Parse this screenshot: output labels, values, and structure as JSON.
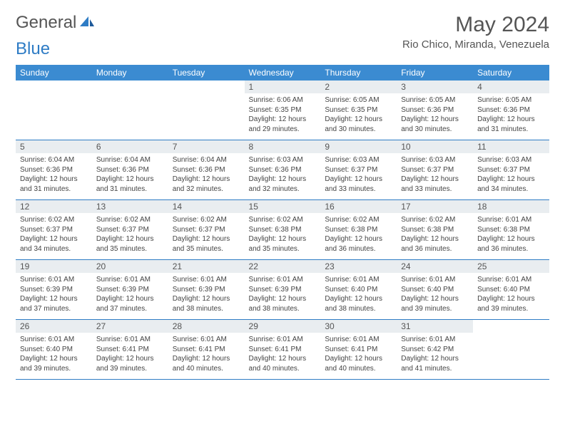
{
  "brand": {
    "name1": "General",
    "name2": "Blue"
  },
  "title": "May 2024",
  "location": "Rio Chico, Miranda, Venezuela",
  "colors": {
    "header_bg": "#3b8bd1",
    "header_text": "#ffffff",
    "divider": "#2e7cc5",
    "daynum_bg": "#e9edf0",
    "text": "#555555",
    "body_text": "#444444"
  },
  "weekdays": [
    "Sunday",
    "Monday",
    "Tuesday",
    "Wednesday",
    "Thursday",
    "Friday",
    "Saturday"
  ],
  "weeks": [
    [
      null,
      null,
      null,
      {
        "n": "1",
        "sunrise": "Sunrise: 6:06 AM",
        "sunset": "Sunset: 6:35 PM",
        "d1": "Daylight: 12 hours",
        "d2": "and 29 minutes."
      },
      {
        "n": "2",
        "sunrise": "Sunrise: 6:05 AM",
        "sunset": "Sunset: 6:35 PM",
        "d1": "Daylight: 12 hours",
        "d2": "and 30 minutes."
      },
      {
        "n": "3",
        "sunrise": "Sunrise: 6:05 AM",
        "sunset": "Sunset: 6:36 PM",
        "d1": "Daylight: 12 hours",
        "d2": "and 30 minutes."
      },
      {
        "n": "4",
        "sunrise": "Sunrise: 6:05 AM",
        "sunset": "Sunset: 6:36 PM",
        "d1": "Daylight: 12 hours",
        "d2": "and 31 minutes."
      }
    ],
    [
      {
        "n": "5",
        "sunrise": "Sunrise: 6:04 AM",
        "sunset": "Sunset: 6:36 PM",
        "d1": "Daylight: 12 hours",
        "d2": "and 31 minutes."
      },
      {
        "n": "6",
        "sunrise": "Sunrise: 6:04 AM",
        "sunset": "Sunset: 6:36 PM",
        "d1": "Daylight: 12 hours",
        "d2": "and 31 minutes."
      },
      {
        "n": "7",
        "sunrise": "Sunrise: 6:04 AM",
        "sunset": "Sunset: 6:36 PM",
        "d1": "Daylight: 12 hours",
        "d2": "and 32 minutes."
      },
      {
        "n": "8",
        "sunrise": "Sunrise: 6:03 AM",
        "sunset": "Sunset: 6:36 PM",
        "d1": "Daylight: 12 hours",
        "d2": "and 32 minutes."
      },
      {
        "n": "9",
        "sunrise": "Sunrise: 6:03 AM",
        "sunset": "Sunset: 6:37 PM",
        "d1": "Daylight: 12 hours",
        "d2": "and 33 minutes."
      },
      {
        "n": "10",
        "sunrise": "Sunrise: 6:03 AM",
        "sunset": "Sunset: 6:37 PM",
        "d1": "Daylight: 12 hours",
        "d2": "and 33 minutes."
      },
      {
        "n": "11",
        "sunrise": "Sunrise: 6:03 AM",
        "sunset": "Sunset: 6:37 PM",
        "d1": "Daylight: 12 hours",
        "d2": "and 34 minutes."
      }
    ],
    [
      {
        "n": "12",
        "sunrise": "Sunrise: 6:02 AM",
        "sunset": "Sunset: 6:37 PM",
        "d1": "Daylight: 12 hours",
        "d2": "and 34 minutes."
      },
      {
        "n": "13",
        "sunrise": "Sunrise: 6:02 AM",
        "sunset": "Sunset: 6:37 PM",
        "d1": "Daylight: 12 hours",
        "d2": "and 35 minutes."
      },
      {
        "n": "14",
        "sunrise": "Sunrise: 6:02 AM",
        "sunset": "Sunset: 6:37 PM",
        "d1": "Daylight: 12 hours",
        "d2": "and 35 minutes."
      },
      {
        "n": "15",
        "sunrise": "Sunrise: 6:02 AM",
        "sunset": "Sunset: 6:38 PM",
        "d1": "Daylight: 12 hours",
        "d2": "and 35 minutes."
      },
      {
        "n": "16",
        "sunrise": "Sunrise: 6:02 AM",
        "sunset": "Sunset: 6:38 PM",
        "d1": "Daylight: 12 hours",
        "d2": "and 36 minutes."
      },
      {
        "n": "17",
        "sunrise": "Sunrise: 6:02 AM",
        "sunset": "Sunset: 6:38 PM",
        "d1": "Daylight: 12 hours",
        "d2": "and 36 minutes."
      },
      {
        "n": "18",
        "sunrise": "Sunrise: 6:01 AM",
        "sunset": "Sunset: 6:38 PM",
        "d1": "Daylight: 12 hours",
        "d2": "and 36 minutes."
      }
    ],
    [
      {
        "n": "19",
        "sunrise": "Sunrise: 6:01 AM",
        "sunset": "Sunset: 6:39 PM",
        "d1": "Daylight: 12 hours",
        "d2": "and 37 minutes."
      },
      {
        "n": "20",
        "sunrise": "Sunrise: 6:01 AM",
        "sunset": "Sunset: 6:39 PM",
        "d1": "Daylight: 12 hours",
        "d2": "and 37 minutes."
      },
      {
        "n": "21",
        "sunrise": "Sunrise: 6:01 AM",
        "sunset": "Sunset: 6:39 PM",
        "d1": "Daylight: 12 hours",
        "d2": "and 38 minutes."
      },
      {
        "n": "22",
        "sunrise": "Sunrise: 6:01 AM",
        "sunset": "Sunset: 6:39 PM",
        "d1": "Daylight: 12 hours",
        "d2": "and 38 minutes."
      },
      {
        "n": "23",
        "sunrise": "Sunrise: 6:01 AM",
        "sunset": "Sunset: 6:40 PM",
        "d1": "Daylight: 12 hours",
        "d2": "and 38 minutes."
      },
      {
        "n": "24",
        "sunrise": "Sunrise: 6:01 AM",
        "sunset": "Sunset: 6:40 PM",
        "d1": "Daylight: 12 hours",
        "d2": "and 39 minutes."
      },
      {
        "n": "25",
        "sunrise": "Sunrise: 6:01 AM",
        "sunset": "Sunset: 6:40 PM",
        "d1": "Daylight: 12 hours",
        "d2": "and 39 minutes."
      }
    ],
    [
      {
        "n": "26",
        "sunrise": "Sunrise: 6:01 AM",
        "sunset": "Sunset: 6:40 PM",
        "d1": "Daylight: 12 hours",
        "d2": "and 39 minutes."
      },
      {
        "n": "27",
        "sunrise": "Sunrise: 6:01 AM",
        "sunset": "Sunset: 6:41 PM",
        "d1": "Daylight: 12 hours",
        "d2": "and 39 minutes."
      },
      {
        "n": "28",
        "sunrise": "Sunrise: 6:01 AM",
        "sunset": "Sunset: 6:41 PM",
        "d1": "Daylight: 12 hours",
        "d2": "and 40 minutes."
      },
      {
        "n": "29",
        "sunrise": "Sunrise: 6:01 AM",
        "sunset": "Sunset: 6:41 PM",
        "d1": "Daylight: 12 hours",
        "d2": "and 40 minutes."
      },
      {
        "n": "30",
        "sunrise": "Sunrise: 6:01 AM",
        "sunset": "Sunset: 6:41 PM",
        "d1": "Daylight: 12 hours",
        "d2": "and 40 minutes."
      },
      {
        "n": "31",
        "sunrise": "Sunrise: 6:01 AM",
        "sunset": "Sunset: 6:42 PM",
        "d1": "Daylight: 12 hours",
        "d2": "and 41 minutes."
      },
      null
    ]
  ]
}
